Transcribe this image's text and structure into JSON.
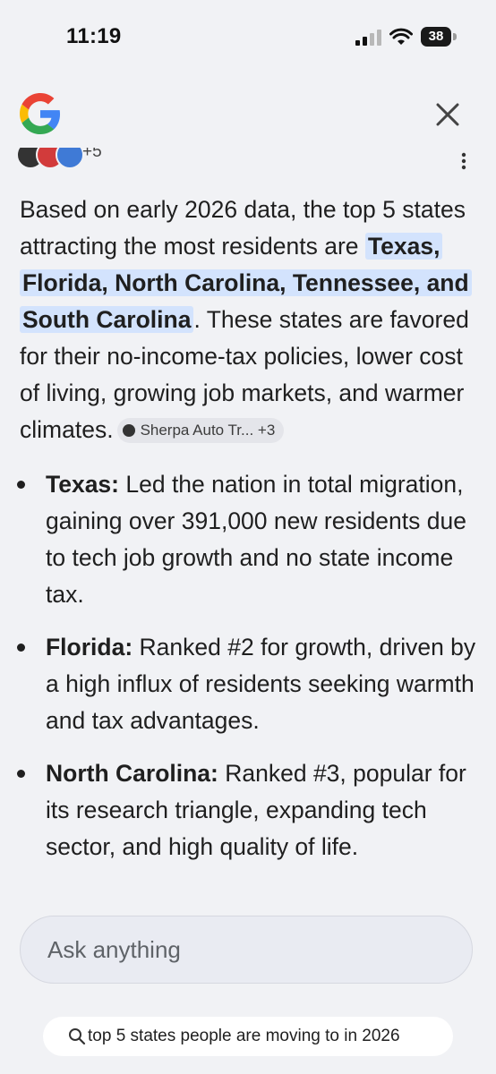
{
  "status_bar": {
    "time": "11:19",
    "battery_level": "38"
  },
  "header": {
    "logo_icon": "google-g-logo",
    "close_icon": "close-icon"
  },
  "sources": {
    "extra_count": "+5"
  },
  "answer": {
    "intro": "Based on early 2026 data, the top 5 states attracting the most residents are ",
    "highlight": "Texas, Florida, North Carolina, Tennessee, and South Carolina",
    "body": ". These states are favored for their no-income-tax policies, lower cost of living, growing job markets, and warmer climates.",
    "citation": "Sherpa Auto Tr... +3",
    "bullets": [
      {
        "label": "Texas:",
        "text": " Led the nation in total migration, gaining over 391,000 new residents due to tech job growth and no state income tax."
      },
      {
        "label": "Florida:",
        "text": " Ranked #2 for growth, driven by a high influx of residents seeking warmth and tax advantages."
      },
      {
        "label": "North Carolina:",
        "text": " Ranked #3, popular for its research triangle, expanding tech sector, and high quality of life."
      }
    ]
  },
  "ask": {
    "placeholder": "Ask anything"
  },
  "query_chip": {
    "text": "top 5 states people are moving to in 2026"
  },
  "colors": {
    "background": "#f1f2f5",
    "highlight": "#d3e3fd",
    "ask_box": "#e9ebf2"
  }
}
